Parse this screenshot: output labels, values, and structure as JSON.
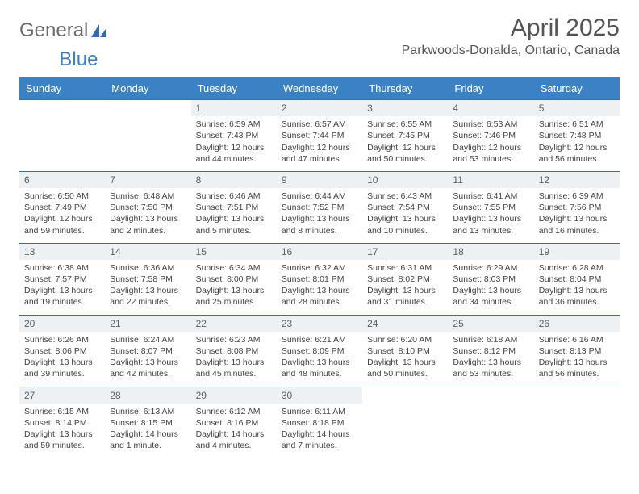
{
  "brand": {
    "part1": "General",
    "part2": "Blue"
  },
  "title": "April 2025",
  "location": "Parkwoods-Donalda, Ontario, Canada",
  "colors": {
    "header_bg": "#3b82c4",
    "header_text": "#ffffff",
    "daynum_bg": "#eef1f4",
    "row_border": "#3b6fa0",
    "brand_gray": "#6b6b6b",
    "brand_blue": "#3b7fc4"
  },
  "weekdays": [
    "Sunday",
    "Monday",
    "Tuesday",
    "Wednesday",
    "Thursday",
    "Friday",
    "Saturday"
  ],
  "weeks": [
    [
      {
        "n": "",
        "sr": "",
        "ss": "",
        "dl": ""
      },
      {
        "n": "",
        "sr": "",
        "ss": "",
        "dl": ""
      },
      {
        "n": "1",
        "sr": "Sunrise: 6:59 AM",
        "ss": "Sunset: 7:43 PM",
        "dl": "Daylight: 12 hours and 44 minutes."
      },
      {
        "n": "2",
        "sr": "Sunrise: 6:57 AM",
        "ss": "Sunset: 7:44 PM",
        "dl": "Daylight: 12 hours and 47 minutes."
      },
      {
        "n": "3",
        "sr": "Sunrise: 6:55 AM",
        "ss": "Sunset: 7:45 PM",
        "dl": "Daylight: 12 hours and 50 minutes."
      },
      {
        "n": "4",
        "sr": "Sunrise: 6:53 AM",
        "ss": "Sunset: 7:46 PM",
        "dl": "Daylight: 12 hours and 53 minutes."
      },
      {
        "n": "5",
        "sr": "Sunrise: 6:51 AM",
        "ss": "Sunset: 7:48 PM",
        "dl": "Daylight: 12 hours and 56 minutes."
      }
    ],
    [
      {
        "n": "6",
        "sr": "Sunrise: 6:50 AM",
        "ss": "Sunset: 7:49 PM",
        "dl": "Daylight: 12 hours and 59 minutes."
      },
      {
        "n": "7",
        "sr": "Sunrise: 6:48 AM",
        "ss": "Sunset: 7:50 PM",
        "dl": "Daylight: 13 hours and 2 minutes."
      },
      {
        "n": "8",
        "sr": "Sunrise: 6:46 AM",
        "ss": "Sunset: 7:51 PM",
        "dl": "Daylight: 13 hours and 5 minutes."
      },
      {
        "n": "9",
        "sr": "Sunrise: 6:44 AM",
        "ss": "Sunset: 7:52 PM",
        "dl": "Daylight: 13 hours and 8 minutes."
      },
      {
        "n": "10",
        "sr": "Sunrise: 6:43 AM",
        "ss": "Sunset: 7:54 PM",
        "dl": "Daylight: 13 hours and 10 minutes."
      },
      {
        "n": "11",
        "sr": "Sunrise: 6:41 AM",
        "ss": "Sunset: 7:55 PM",
        "dl": "Daylight: 13 hours and 13 minutes."
      },
      {
        "n": "12",
        "sr": "Sunrise: 6:39 AM",
        "ss": "Sunset: 7:56 PM",
        "dl": "Daylight: 13 hours and 16 minutes."
      }
    ],
    [
      {
        "n": "13",
        "sr": "Sunrise: 6:38 AM",
        "ss": "Sunset: 7:57 PM",
        "dl": "Daylight: 13 hours and 19 minutes."
      },
      {
        "n": "14",
        "sr": "Sunrise: 6:36 AM",
        "ss": "Sunset: 7:58 PM",
        "dl": "Daylight: 13 hours and 22 minutes."
      },
      {
        "n": "15",
        "sr": "Sunrise: 6:34 AM",
        "ss": "Sunset: 8:00 PM",
        "dl": "Daylight: 13 hours and 25 minutes."
      },
      {
        "n": "16",
        "sr": "Sunrise: 6:32 AM",
        "ss": "Sunset: 8:01 PM",
        "dl": "Daylight: 13 hours and 28 minutes."
      },
      {
        "n": "17",
        "sr": "Sunrise: 6:31 AM",
        "ss": "Sunset: 8:02 PM",
        "dl": "Daylight: 13 hours and 31 minutes."
      },
      {
        "n": "18",
        "sr": "Sunrise: 6:29 AM",
        "ss": "Sunset: 8:03 PM",
        "dl": "Daylight: 13 hours and 34 minutes."
      },
      {
        "n": "19",
        "sr": "Sunrise: 6:28 AM",
        "ss": "Sunset: 8:04 PM",
        "dl": "Daylight: 13 hours and 36 minutes."
      }
    ],
    [
      {
        "n": "20",
        "sr": "Sunrise: 6:26 AM",
        "ss": "Sunset: 8:06 PM",
        "dl": "Daylight: 13 hours and 39 minutes."
      },
      {
        "n": "21",
        "sr": "Sunrise: 6:24 AM",
        "ss": "Sunset: 8:07 PM",
        "dl": "Daylight: 13 hours and 42 minutes."
      },
      {
        "n": "22",
        "sr": "Sunrise: 6:23 AM",
        "ss": "Sunset: 8:08 PM",
        "dl": "Daylight: 13 hours and 45 minutes."
      },
      {
        "n": "23",
        "sr": "Sunrise: 6:21 AM",
        "ss": "Sunset: 8:09 PM",
        "dl": "Daylight: 13 hours and 48 minutes."
      },
      {
        "n": "24",
        "sr": "Sunrise: 6:20 AM",
        "ss": "Sunset: 8:10 PM",
        "dl": "Daylight: 13 hours and 50 minutes."
      },
      {
        "n": "25",
        "sr": "Sunrise: 6:18 AM",
        "ss": "Sunset: 8:12 PM",
        "dl": "Daylight: 13 hours and 53 minutes."
      },
      {
        "n": "26",
        "sr": "Sunrise: 6:16 AM",
        "ss": "Sunset: 8:13 PM",
        "dl": "Daylight: 13 hours and 56 minutes."
      }
    ],
    [
      {
        "n": "27",
        "sr": "Sunrise: 6:15 AM",
        "ss": "Sunset: 8:14 PM",
        "dl": "Daylight: 13 hours and 59 minutes."
      },
      {
        "n": "28",
        "sr": "Sunrise: 6:13 AM",
        "ss": "Sunset: 8:15 PM",
        "dl": "Daylight: 14 hours and 1 minute."
      },
      {
        "n": "29",
        "sr": "Sunrise: 6:12 AM",
        "ss": "Sunset: 8:16 PM",
        "dl": "Daylight: 14 hours and 4 minutes."
      },
      {
        "n": "30",
        "sr": "Sunrise: 6:11 AM",
        "ss": "Sunset: 8:18 PM",
        "dl": "Daylight: 14 hours and 7 minutes."
      },
      {
        "n": "",
        "sr": "",
        "ss": "",
        "dl": ""
      },
      {
        "n": "",
        "sr": "",
        "ss": "",
        "dl": ""
      },
      {
        "n": "",
        "sr": "",
        "ss": "",
        "dl": ""
      }
    ]
  ]
}
